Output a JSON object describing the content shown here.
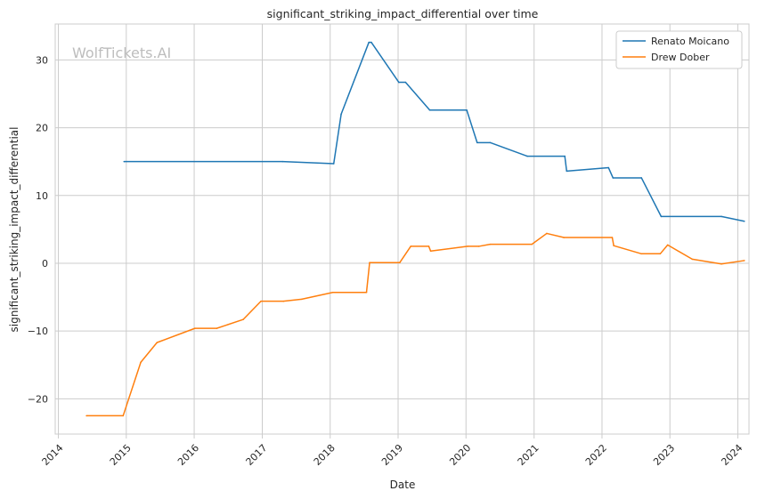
{
  "chart_data": {
    "type": "line",
    "title": "significant_striking_impact_differential over time",
    "xlabel": "Date",
    "ylabel": "significant_striking_impact_differential",
    "watermark": "WolfTickets.AI",
    "x_ticks": [
      "2014",
      "2015",
      "2016",
      "2017",
      "2018",
      "2019",
      "2020",
      "2021",
      "2022",
      "2023",
      "2024"
    ],
    "y_ticks": [
      -20,
      -10,
      0,
      10,
      20,
      30
    ],
    "xlim": [
      "2013-12-15",
      "2024-03-01"
    ],
    "ylim": [
      -25.2,
      35.3
    ],
    "grid": true,
    "legend_position": "top-right",
    "series": [
      {
        "name": "Renato Moicano",
        "color": "#1f77b4",
        "points": [
          [
            "2014-12-20",
            15.0
          ],
          [
            "2017-04-20",
            15.0
          ],
          [
            "2018-01-20",
            14.7
          ],
          [
            "2018-03-01",
            22.0
          ],
          [
            "2018-07-28",
            32.6
          ],
          [
            "2018-08-10",
            32.6
          ],
          [
            "2019-01-05",
            26.7
          ],
          [
            "2019-02-10",
            26.7
          ],
          [
            "2019-06-20",
            22.6
          ],
          [
            "2020-01-05",
            22.6
          ],
          [
            "2020-03-01",
            17.8
          ],
          [
            "2020-05-10",
            17.8
          ],
          [
            "2020-11-25",
            15.8
          ],
          [
            "2021-06-15",
            15.8
          ],
          [
            "2021-06-25",
            13.6
          ],
          [
            "2022-02-05",
            14.1
          ],
          [
            "2022-03-01",
            12.6
          ],
          [
            "2022-08-01",
            12.6
          ],
          [
            "2022-11-15",
            6.9
          ],
          [
            "2023-10-05",
            6.9
          ],
          [
            "2024-02-05",
            6.2
          ]
        ]
      },
      {
        "name": "Drew Dober",
        "color": "#ff7f0e",
        "points": [
          [
            "2014-06-01",
            -22.5
          ],
          [
            "2014-12-15",
            -22.5
          ],
          [
            "2015-03-20",
            -14.6
          ],
          [
            "2015-06-15",
            -11.7
          ],
          [
            "2016-01-05",
            -9.6
          ],
          [
            "2016-05-01",
            -9.6
          ],
          [
            "2016-09-20",
            -8.3
          ],
          [
            "2016-12-25",
            -5.6
          ],
          [
            "2017-04-25",
            -5.6
          ],
          [
            "2017-08-01",
            -5.3
          ],
          [
            "2018-01-15",
            -4.3
          ],
          [
            "2018-07-15",
            -4.3
          ],
          [
            "2018-08-01",
            0.1
          ],
          [
            "2019-01-10",
            0.1
          ],
          [
            "2019-03-10",
            2.5
          ],
          [
            "2019-06-15",
            2.5
          ],
          [
            "2019-06-25",
            1.8
          ],
          [
            "2020-01-10",
            2.5
          ],
          [
            "2020-03-10",
            2.5
          ],
          [
            "2020-05-10",
            2.8
          ],
          [
            "2020-12-20",
            2.8
          ],
          [
            "2021-03-10",
            4.4
          ],
          [
            "2021-06-10",
            3.8
          ],
          [
            "2022-02-25",
            3.8
          ],
          [
            "2022-03-05",
            2.6
          ],
          [
            "2022-08-01",
            1.4
          ],
          [
            "2022-11-10",
            1.4
          ],
          [
            "2022-12-20",
            2.7
          ],
          [
            "2023-05-01",
            0.6
          ],
          [
            "2023-10-05",
            -0.1
          ],
          [
            "2024-02-05",
            0.4
          ]
        ]
      }
    ]
  }
}
